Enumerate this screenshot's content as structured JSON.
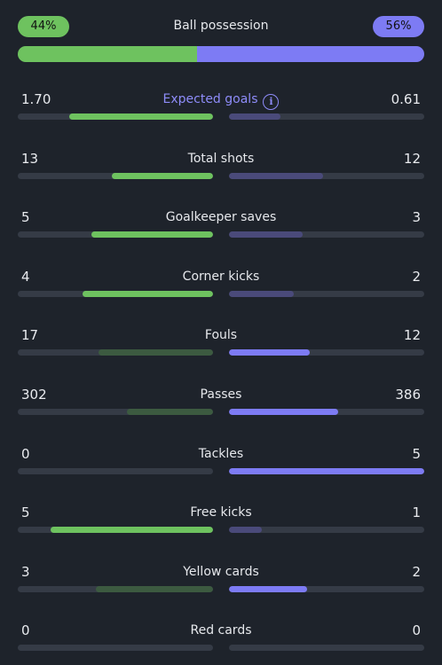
{
  "possession": {
    "title": "Ball possession",
    "home_label": "44%",
    "away_label": "56%",
    "home_fraction": 0.44,
    "away_fraction": 0.56
  },
  "colors": {
    "home": "#6ec25f",
    "away": "#7d7bf4",
    "highlight_label": "#8e8cf9"
  },
  "stats": [
    {
      "label": "Expected goals",
      "home": "1.70",
      "away": "0.61",
      "home_fraction": 0.736,
      "away_fraction": 0.264,
      "home_leads": true,
      "icon": "info-icon",
      "highlight": true
    },
    {
      "label": "Total shots",
      "home": "13",
      "away": "12",
      "home_fraction": 0.52,
      "away_fraction": 0.48,
      "home_leads": true
    },
    {
      "label": "Goalkeeper saves",
      "home": "5",
      "away": "3",
      "home_fraction": 0.625,
      "away_fraction": 0.375,
      "home_leads": true
    },
    {
      "label": "Corner kicks",
      "home": "4",
      "away": "2",
      "home_fraction": 0.667,
      "away_fraction": 0.333,
      "home_leads": true
    },
    {
      "label": "Fouls",
      "home": "17",
      "away": "12",
      "home_fraction": 0.586,
      "away_fraction": 0.414,
      "home_leads": false
    },
    {
      "label": "Passes",
      "home": "302",
      "away": "386",
      "home_fraction": 0.439,
      "away_fraction": 0.561,
      "home_leads": false
    },
    {
      "label": "Tackles",
      "home": "0",
      "away": "5",
      "home_fraction": 0.0,
      "away_fraction": 1.0,
      "home_leads": false
    },
    {
      "label": "Free kicks",
      "home": "5",
      "away": "1",
      "home_fraction": 0.833,
      "away_fraction": 0.167,
      "home_leads": true
    },
    {
      "label": "Yellow cards",
      "home": "3",
      "away": "2",
      "home_fraction": 0.6,
      "away_fraction": 0.4,
      "home_leads": false
    },
    {
      "label": "Red cards",
      "home": "0",
      "away": "0",
      "home_fraction": 0.0,
      "away_fraction": 0.0,
      "home_leads": false
    }
  ]
}
